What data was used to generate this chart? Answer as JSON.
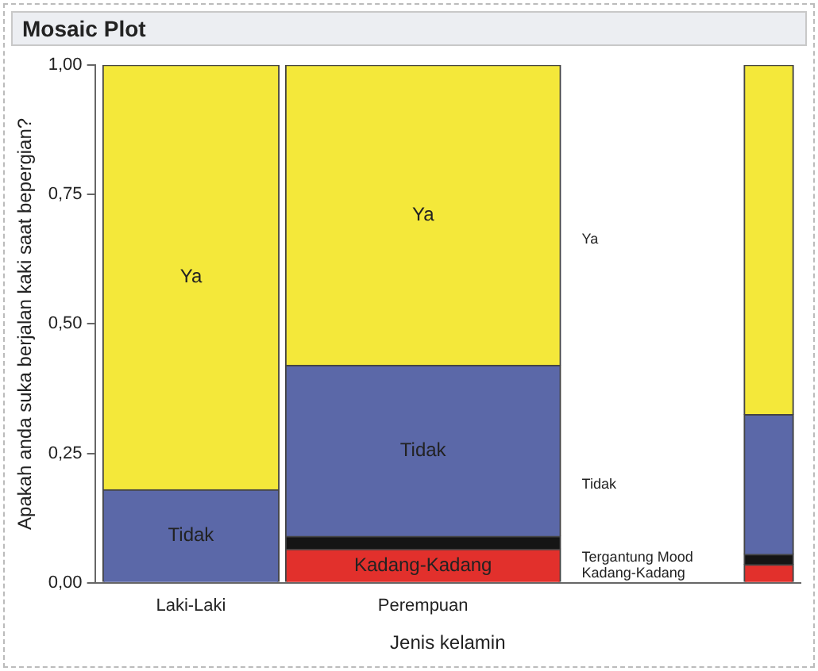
{
  "chart_data": {
    "type": "bar",
    "title": "Mosaic Plot",
    "xlabel": "Jenis kelamin",
    "ylabel": "Apakah anda suka berjalan kaki saat bepergian?",
    "stacked": true,
    "categories": [
      "Laki-Laki",
      "Perempuan",
      null
    ],
    "series": [
      {
        "name": "Kadang-Kadang",
        "color": "#e2302c",
        "values": [
          0,
          0.065,
          0.035
        ]
      },
      {
        "name": "Tergantung Mood",
        "color": "#151515",
        "values": [
          0,
          0.025,
          0.02
        ]
      },
      {
        "name": "Tidak",
        "color": "#5b68a8",
        "values": [
          0.18,
          0.33,
          0.27
        ]
      },
      {
        "name": "Ya",
        "color": "#f4e83a",
        "values": [
          0.82,
          0.58,
          0.675
        ]
      }
    ],
    "ylim": [
      0,
      1
    ],
    "yticks": [
      {
        "value": 0,
        "label": "0,00"
      },
      {
        "value": 0.25,
        "label": "0,25"
      },
      {
        "value": 0.5,
        "label": "0,50"
      },
      {
        "value": 0.75,
        "label": "0,75"
      },
      {
        "value": 1,
        "label": "1,00"
      }
    ],
    "grid": false
  }
}
